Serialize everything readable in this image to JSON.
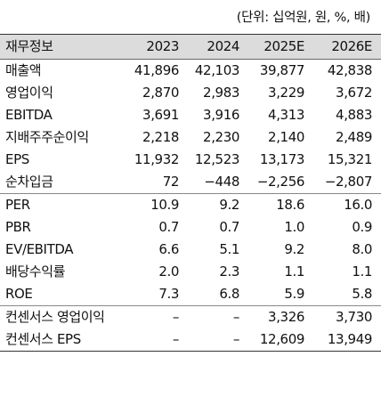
{
  "unit_note": "(단위: 십억원, 원, %, 배)",
  "header": [
    "재무정보",
    "2023",
    "2024",
    "2025E",
    "2026E"
  ],
  "rows": [
    [
      "매출액",
      "41,896",
      "42,103",
      "39,877",
      "42,838"
    ],
    [
      "영업이익",
      "2,870",
      "2,983",
      "3,229",
      "3,672"
    ],
    [
      "EBITDA",
      "3,691",
      "3,916",
      "4,313",
      "4,883"
    ],
    [
      "지배주주순이익",
      "2,218",
      "2,230",
      "2,140",
      "2,489"
    ],
    [
      "EPS",
      "11,932",
      "12,523",
      "13,173",
      "15,321"
    ],
    [
      "순차입금",
      "72",
      "−448",
      "−2,256",
      "−2,807"
    ],
    [
      "PER",
      "10.9",
      "9.2",
      "18.6",
      "16.0"
    ],
    [
      "PBR",
      "0.7",
      "0.7",
      "1.0",
      "0.9"
    ],
    [
      "EV/EBITDA",
      "6.6",
      "5.1",
      "9.2",
      "8.0"
    ],
    [
      "배당수익률",
      "2.0",
      "2.3",
      "1.1",
      "1.1"
    ],
    [
      "ROE",
      "7.3",
      "6.8",
      "5.9",
      "5.8"
    ],
    [
      "컨센서스 영업이익",
      "–",
      "–",
      "3,326",
      "3,730"
    ],
    [
      "컨센서스 EPS",
      "–",
      "–",
      "12,609",
      "13,949"
    ]
  ]
}
